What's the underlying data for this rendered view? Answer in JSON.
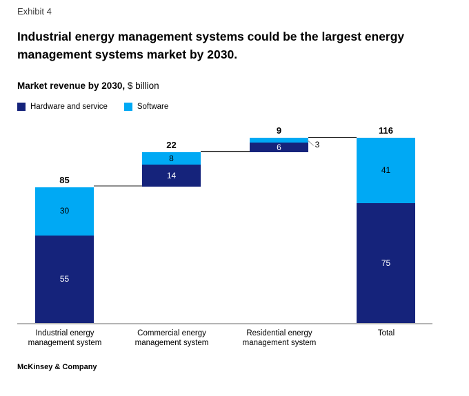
{
  "page": {
    "exhibit_label": "Exhibit 4",
    "title": "Industrial energy management systems could be the largest energy management systems market by 2030.",
    "subtitle_bold": "Market revenue by 2030,",
    "subtitle_regular": " $ billion",
    "footer": "McKinsey & Company"
  },
  "colors": {
    "hardware_navy": "#15237b",
    "software_cyan": "#00a9f4",
    "connector_gray": "#8e8e8e",
    "axis_gray": "#b5b5b5"
  },
  "legend": {
    "items": [
      {
        "label": "Hardware and service",
        "color": "#15237b"
      },
      {
        "label": "Software",
        "color": "#00a9f4"
      }
    ]
  },
  "chart_data": {
    "type": "bar",
    "subtype": "stacked waterfall",
    "title": "Market revenue by 2030, $ billion",
    "unit": "$ billion",
    "categories": [
      "Industrial energy management system",
      "Commercial energy management system",
      "Residential energy management system",
      "Total"
    ],
    "category_lines": [
      [
        "Industrial energy",
        "management system"
      ],
      [
        "Commercial energy",
        "management system"
      ],
      [
        "Residential energy",
        "management system"
      ],
      [
        "Total"
      ]
    ],
    "series": [
      {
        "name": "Hardware and service",
        "color": "#15237b",
        "values": [
          55,
          14,
          6,
          75
        ]
      },
      {
        "name": "Software",
        "color": "#00a9f4",
        "values": [
          30,
          8,
          3,
          41
        ]
      }
    ],
    "totals": [
      85,
      22,
      9,
      116
    ],
    "layout_hints": {
      "legend_position": "top-left",
      "grid": false,
      "waterfall_cumulative": [
        true,
        true,
        true,
        false
      ],
      "residential_software_label_outside": true
    }
  }
}
